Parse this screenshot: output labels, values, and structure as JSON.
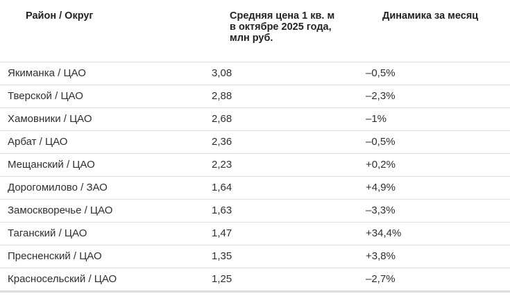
{
  "table": {
    "headers": [
      "Район / Округ",
      "Средняя цена 1 кв. м в октябре 2025 года, млн руб.",
      "Динамика за месяц"
    ],
    "rows": [
      [
        "Якиманка / ЦАО",
        "3,08",
        "–0,5%"
      ],
      [
        "Тверской / ЦАО",
        "2,88",
        "–2,3%"
      ],
      [
        "Хамовники / ЦАО",
        "2,68",
        "–1%"
      ],
      [
        "Арбат / ЦАО",
        "2,36",
        "–0,5%"
      ],
      [
        "Мещанский / ЦАО",
        "2,23",
        "+0,2%"
      ],
      [
        "Дорогомилово / ЗАО",
        "1,64",
        "+4,9%"
      ],
      [
        "Замоскворечье / ЦАО",
        "1,63",
        "–3,3%"
      ],
      [
        "Таганский / ЦАО",
        "1,47",
        "+34,4%"
      ],
      [
        "Пресненский / ЦАО",
        "1,35",
        "+3,8%"
      ],
      [
        "Красносельский / ЦАО",
        "1,25",
        "–2,7%"
      ]
    ]
  }
}
